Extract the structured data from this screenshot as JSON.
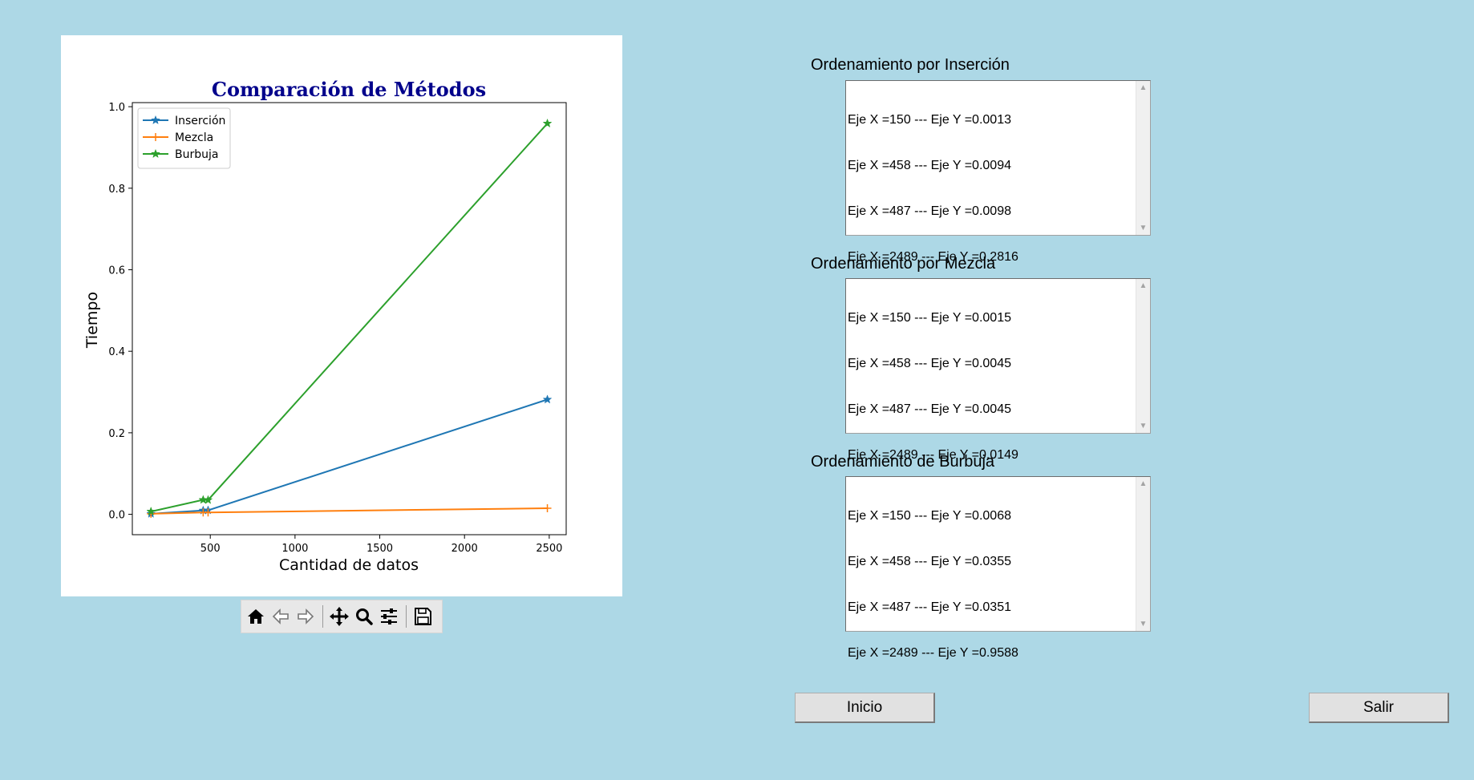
{
  "chart_data": {
    "type": "line",
    "title": "Comparación de Métodos",
    "xlabel": "Cantidad de datos",
    "ylabel": "Tiempo",
    "xlim": [
      40,
      2600
    ],
    "ylim": [
      -0.05,
      1.01
    ],
    "x": [
      150,
      458,
      487,
      2489
    ],
    "xticks": [
      500,
      1000,
      1500,
      2000,
      2500
    ],
    "xtick_labels": [
      "500",
      "1000",
      "1500",
      "2000",
      "2500"
    ],
    "yticks": [
      0.0,
      0.2,
      0.4,
      0.6,
      0.8,
      1.0
    ],
    "ytick_labels": [
      "0.0",
      "0.2",
      "0.4",
      "0.6",
      "0.8",
      "1.0"
    ],
    "legend_position": "top-left",
    "grid": false,
    "series": [
      {
        "name": "Inserción",
        "values": [
          0.0013,
          0.0094,
          0.0098,
          0.2816
        ],
        "color": "#1f77b4",
        "marker": "*"
      },
      {
        "name": "Mezcla",
        "values": [
          0.0015,
          0.0045,
          0.0045,
          0.0149
        ],
        "color": "#ff7f0e",
        "marker": "+"
      },
      {
        "name": "Burbuja",
        "values": [
          0.0068,
          0.0355,
          0.0351,
          0.9588
        ],
        "color": "#2ca02c",
        "marker": "*"
      }
    ]
  },
  "toolbar": {
    "buttons": [
      "home-icon",
      "back-arrow-icon",
      "forward-arrow-icon",
      "pan-icon",
      "zoom-icon",
      "configure-subplots-icon",
      "save-icon"
    ]
  },
  "panels": {
    "insercion": {
      "label": "Ordenamiento por Inserción",
      "lines": [
        "Eje X =150 --- Eje Y =0.0013",
        "Eje X =458 --- Eje Y =0.0094",
        "Eje X =487 --- Eje Y =0.0098",
        "Eje X =2489 --- Eje Y =0.2816"
      ]
    },
    "mezcla": {
      "label": "Ordenamiento por Mezcla",
      "lines": [
        "Eje X =150 --- Eje Y =0.0015",
        "Eje X =458 --- Eje Y =0.0045",
        "Eje X =487 --- Eje Y =0.0045",
        "Eje X =2489 --- Eje Y =0.0149"
      ]
    },
    "burbuja": {
      "label": "Ordenamiento de Burbuja",
      "lines": [
        "Eje X =150 --- Eje Y =0.0068",
        "Eje X =458 --- Eje Y =0.0355",
        "Eje X =487 --- Eje Y =0.0351",
        "Eje X =2489 --- Eje Y =0.9588"
      ]
    }
  },
  "buttons": {
    "inicio": "Inicio",
    "salir": "Salir"
  },
  "colors": {
    "background": "#add8e6",
    "title": "#00008b"
  }
}
